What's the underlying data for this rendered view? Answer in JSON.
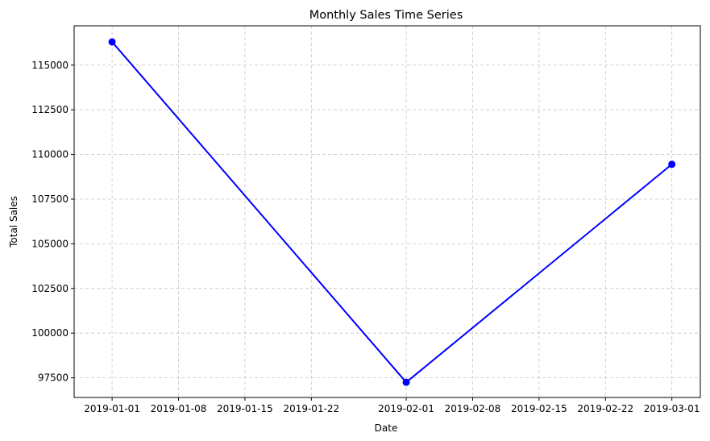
{
  "chart_data": {
    "type": "line",
    "title": "Monthly Sales Time Series",
    "xlabel": "Date",
    "ylabel": "Total Sales",
    "x_tick_labels": [
      "2019-01-01",
      "2019-01-08",
      "2019-01-15",
      "2019-01-22",
      "2019-02-01",
      "2019-02-08",
      "2019-02-15",
      "2019-02-22",
      "2019-03-01"
    ],
    "y_tick_labels": [
      "97500",
      "100000",
      "102500",
      "105000",
      "107500",
      "110000",
      "112500",
      "115000"
    ],
    "x_tick_dates": [
      "2019-01-01",
      "2019-01-08",
      "2019-01-15",
      "2019-01-22",
      "2019-02-01",
      "2019-02-08",
      "2019-02-15",
      "2019-02-22",
      "2019-03-01"
    ],
    "y_ticks": [
      97500,
      100000,
      102500,
      105000,
      107500,
      110000,
      112500,
      115000
    ],
    "xlim": [
      "2018-12-28",
      "2019-03-04"
    ],
    "ylim": [
      96400,
      117200
    ],
    "grid": true,
    "grid_style": "dashed",
    "series": [
      {
        "color": "#0000ff",
        "marker": "circle",
        "points": [
          {
            "x": "2019-01-01",
            "y": 116300
          },
          {
            "x": "2019-02-01",
            "y": 97250
          },
          {
            "x": "2019-03-01",
            "y": 109450
          }
        ]
      }
    ]
  }
}
